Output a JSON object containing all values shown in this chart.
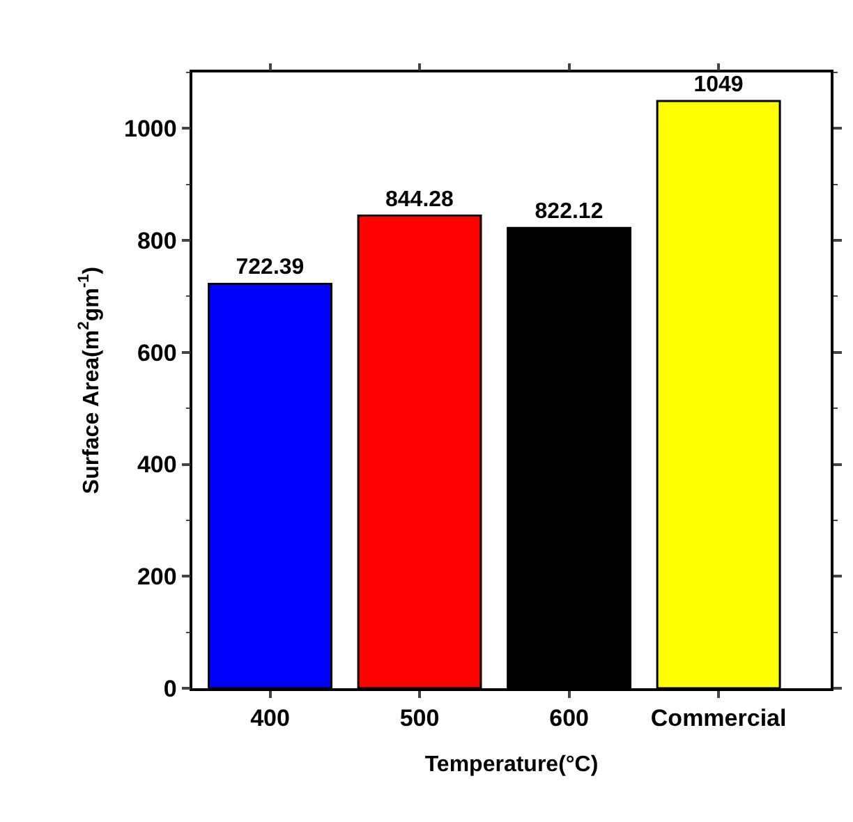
{
  "chart_data": {
    "type": "bar",
    "xlabel": "Temperature(°C)",
    "ylabel": "Surface Area(m$^{2}$gm$^{-1}$)",
    "categories": [
      "400",
      "500",
      "600",
      "Commercial"
    ],
    "values": [
      722.39,
      844.28,
      822.12,
      1049
    ],
    "colors": [
      "#0000ff",
      "#ff0000",
      "#000000",
      "#ffff00"
    ],
    "ylim": [
      0,
      1100
    ],
    "yticks": [
      0,
      200,
      400,
      600,
      800,
      1000
    ],
    "data_labels": true
  }
}
